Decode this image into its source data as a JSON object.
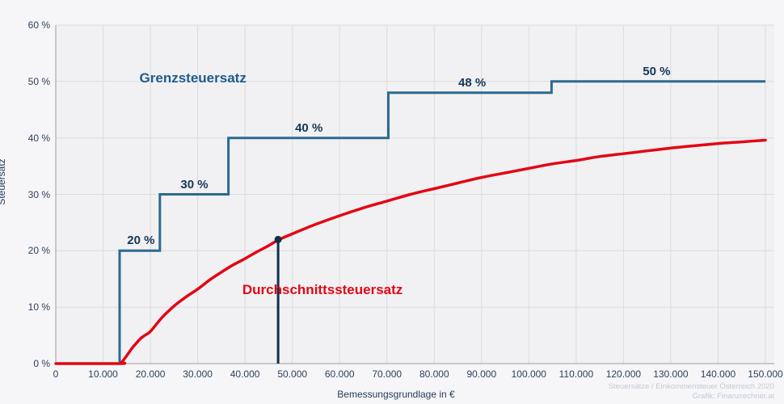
{
  "page": {
    "background": "#f6f6f9",
    "plot_background": "#f1f1f3",
    "grid_color": "#dcdcdf",
    "axis_color": "#9b9ba1"
  },
  "chart_data": {
    "type": "line",
    "title": "",
    "xlabel": "Bemessungsgrundlage in €",
    "ylabel": "Steuersatz",
    "xlim": [
      0,
      150000
    ],
    "ylim": [
      0,
      60
    ],
    "grid": true,
    "x_ticks": [
      {
        "value": 0,
        "label": "0"
      },
      {
        "value": 10000,
        "label": "10.000"
      },
      {
        "value": 20000,
        "label": "20.000"
      },
      {
        "value": 30000,
        "label": "30.000"
      },
      {
        "value": 40000,
        "label": "40.000"
      },
      {
        "value": 50000,
        "label": "50.000"
      },
      {
        "value": 60000,
        "label": "60.000"
      },
      {
        "value": 70000,
        "label": "70.000"
      },
      {
        "value": 80000,
        "label": "80.000"
      },
      {
        "value": 90000,
        "label": "90.000"
      },
      {
        "value": 100000,
        "label": "100.000"
      },
      {
        "value": 110000,
        "label": "110.000"
      },
      {
        "value": 120000,
        "label": "120.000"
      },
      {
        "value": 130000,
        "label": "130.000"
      },
      {
        "value": 140000,
        "label": "140.000"
      },
      {
        "value": 150000,
        "label": "150.000"
      }
    ],
    "y_ticks": [
      {
        "value": 0,
        "label": "0 %"
      },
      {
        "value": 10,
        "label": "10 %"
      },
      {
        "value": 20,
        "label": "20 %"
      },
      {
        "value": 30,
        "label": "30 %"
      },
      {
        "value": 40,
        "label": "40 %"
      },
      {
        "value": 50,
        "label": "50 %"
      },
      {
        "value": 60,
        "label": "60 %"
      }
    ],
    "series": [
      {
        "name": "Grenzsteuersatz",
        "style": "step",
        "color": "#2c6a90",
        "stroke_width": 3,
        "points": [
          [
            0,
            0
          ],
          [
            13500,
            0
          ],
          [
            13500,
            20
          ],
          [
            22000,
            20
          ],
          [
            22000,
            30
          ],
          [
            36500,
            30
          ],
          [
            36500,
            40
          ],
          [
            70300,
            40
          ],
          [
            70300,
            48
          ],
          [
            104800,
            48
          ],
          [
            104800,
            50
          ],
          [
            150000,
            50
          ]
        ]
      },
      {
        "name": "Durchschnittssteuersatz",
        "style": "smooth",
        "color": "#e30613",
        "stroke_width": 3.5,
        "points": [
          [
            0,
            0
          ],
          [
            13500,
            0
          ],
          [
            14000,
            0.3
          ],
          [
            15000,
            1.4
          ],
          [
            16000,
            2.6
          ],
          [
            17000,
            3.6
          ],
          [
            18000,
            4.5
          ],
          [
            19000,
            5.1
          ],
          [
            20000,
            5.7
          ],
          [
            22500,
            8.2
          ],
          [
            25000,
            10.2
          ],
          [
            27500,
            11.8
          ],
          [
            30000,
            13.2
          ],
          [
            32500,
            14.8
          ],
          [
            35000,
            16.2
          ],
          [
            37500,
            17.5
          ],
          [
            40000,
            18.6
          ],
          [
            42500,
            19.8
          ],
          [
            45000,
            20.9
          ],
          [
            47000,
            21.9
          ],
          [
            50000,
            23.0
          ],
          [
            55000,
            24.7
          ],
          [
            60000,
            26.2
          ],
          [
            65000,
            27.6
          ],
          [
            70000,
            28.8
          ],
          [
            75000,
            30.0
          ],
          [
            80000,
            31.0
          ],
          [
            85000,
            32.0
          ],
          [
            90000,
            33.0
          ],
          [
            95000,
            33.8
          ],
          [
            100000,
            34.6
          ],
          [
            105000,
            35.4
          ],
          [
            110000,
            36.0
          ],
          [
            115000,
            36.7
          ],
          [
            120000,
            37.2
          ],
          [
            125000,
            37.7
          ],
          [
            130000,
            38.2
          ],
          [
            135000,
            38.6
          ],
          [
            140000,
            39.0
          ],
          [
            145000,
            39.3
          ],
          [
            150000,
            39.6
          ]
        ]
      }
    ],
    "step_annotations": [
      {
        "text": "20 %",
        "x": 18000,
        "y": 20
      },
      {
        "text": "30 %",
        "x": 29300,
        "y": 30
      },
      {
        "text": "40 %",
        "x": 53500,
        "y": 40
      },
      {
        "text": "48 %",
        "x": 88000,
        "y": 48
      },
      {
        "text": "50 %",
        "x": 127000,
        "y": 50
      }
    ],
    "series_titles": [
      {
        "text": "Grenzsteuersatz",
        "x": 29000,
        "y": 50.5,
        "color": "#1f5c8d"
      },
      {
        "text": "Durchschnittssteuersatz",
        "x": 56400,
        "y": 13,
        "color": "#e30613"
      }
    ],
    "marker": {
      "x": 47000,
      "y": 22,
      "color": "#122f4d"
    }
  },
  "credit": {
    "line1": "Steuersätze / Einkommensteuer Österreich 2020",
    "line2": "Grafik: Finanzrechner.at"
  }
}
